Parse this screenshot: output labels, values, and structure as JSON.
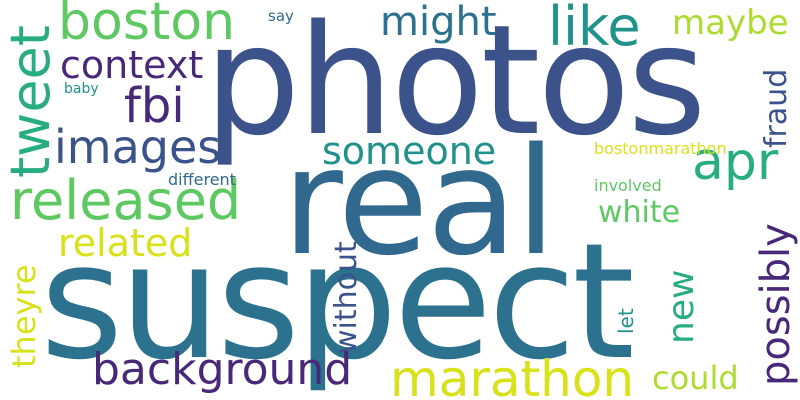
{
  "colors": {
    "background": "#ffffff",
    "dark_purple": "#482878",
    "navy": "#3b528b",
    "blue": "#31688e",
    "teal_blue": "#2c728e",
    "teal": "#21918c",
    "sea_green": "#27ad81",
    "green": "#5ec962",
    "lime": "#addc30",
    "yellow": "#d8e219"
  },
  "words": {
    "suspect": "suspect",
    "photos": "photos",
    "real": "real",
    "boston": "boston",
    "might": "might",
    "like": "like",
    "maybe": "maybe",
    "context": "context",
    "fbi": "fbi",
    "tweet": "tweet",
    "images": "images",
    "released": "released",
    "related": "related",
    "someone": "someone",
    "apr": "apr",
    "fraud": "fraud",
    "white": "white",
    "different": "different",
    "bostonmarathon": "bostonmarathon",
    "involved": "involved",
    "without": "without",
    "possibly": "possibly",
    "new": "new",
    "theyre": "theyre",
    "let": "let",
    "background": "background",
    "marathon": "marathon",
    "could": "could",
    "say": "say",
    "baby": "baby"
  }
}
